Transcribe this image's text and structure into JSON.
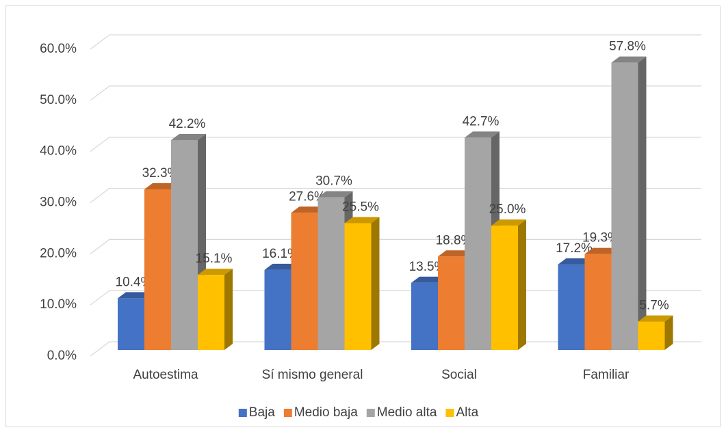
{
  "chart_data": {
    "type": "bar3d",
    "categories": [
      "Autoestima",
      "Sí mismo general",
      "Social",
      "Familiar"
    ],
    "series": [
      {
        "name": "Baja",
        "color": "#4472c4",
        "values": [
          10.4,
          16.1,
          13.5,
          17.2
        ],
        "value_labels": [
          "10.4%",
          "16.1%",
          "13.5%",
          "17.2%"
        ]
      },
      {
        "name": "Medio baja",
        "color": "#ed7d31",
        "values": [
          32.3,
          27.6,
          18.8,
          19.3
        ],
        "value_labels": [
          "32.3%",
          "27.6%",
          "18.8%",
          "19.3%"
        ]
      },
      {
        "name": "Medio alta",
        "color": "#a5a5a5",
        "values": [
          42.2,
          30.7,
          42.7,
          57.8
        ],
        "value_labels": [
          "42.2%",
          "30.7%",
          "42.7%",
          "57.8%"
        ]
      },
      {
        "name": "Alta",
        "color": "#ffc000",
        "values": [
          15.1,
          25.5,
          25.0,
          5.7
        ],
        "value_labels": [
          "15.1%",
          "25.5%",
          "25.0%",
          "5.7%"
        ]
      }
    ],
    "ylim": [
      0,
      60
    ],
    "yticks": [
      {
        "value": 0,
        "label": "0.0%"
      },
      {
        "value": 10,
        "label": "10.0%"
      },
      {
        "value": 20,
        "label": "20.0%"
      },
      {
        "value": 30,
        "label": "30.0%"
      },
      {
        "value": 40,
        "label": "40.0%"
      },
      {
        "value": 50,
        "label": "50.0%"
      },
      {
        "value": 60,
        "label": "60.0%"
      }
    ],
    "grid": true,
    "legend": "bottom"
  }
}
